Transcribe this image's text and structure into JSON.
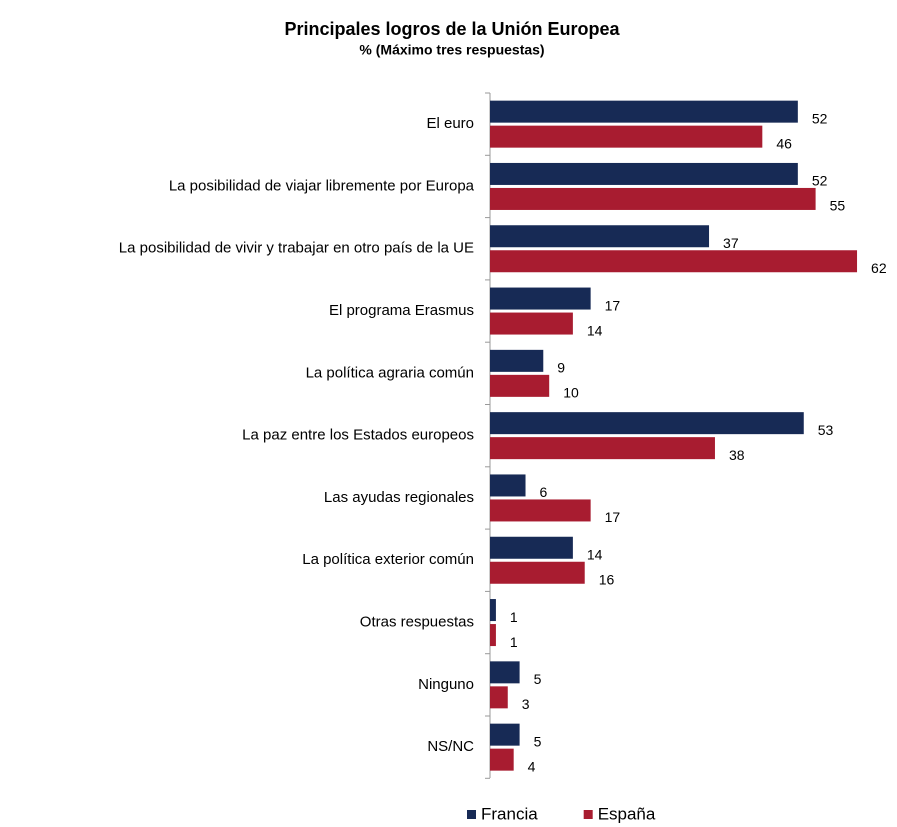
{
  "chart_data": {
    "type": "bar",
    "orientation": "horizontal",
    "title": "Principales logros de la Unión Europea",
    "subtitle": "% (Máximo tres respuestas)",
    "categories": [
      "El euro",
      "La posibilidad de viajar libremente por Europa",
      "La posibilidad de vivir y trabajar en otro país de la UE",
      "El programa Erasmus",
      "La política agraria común",
      "La paz entre los Estados europeos",
      "Las ayudas regionales",
      "La política exterior común",
      "Otras respuestas",
      "Ninguno",
      "NS/NC"
    ],
    "series": [
      {
        "name": "Francia",
        "color": "#172a55",
        "values": [
          52,
          52,
          37,
          17,
          9,
          53,
          6,
          14,
          1,
          5,
          5
        ]
      },
      {
        "name": "España",
        "color": "#a81c30",
        "values": [
          46,
          55,
          62,
          14,
          10,
          38,
          17,
          16,
          1,
          3,
          4
        ]
      }
    ],
    "legend": "bottom"
  }
}
